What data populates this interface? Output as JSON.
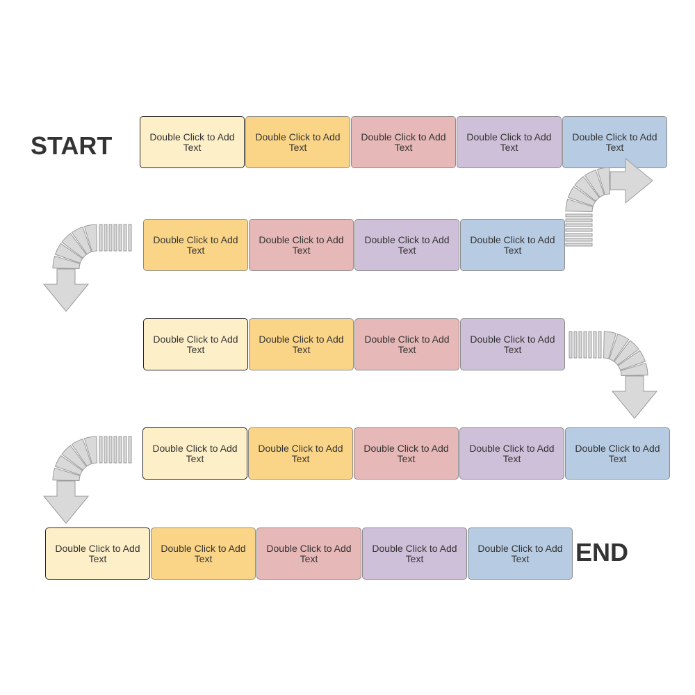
{
  "labels": {
    "start": "START",
    "end": "END"
  },
  "colors": {
    "cream": "#fdefc8",
    "orange": "#fbd587",
    "red": "#e6b8b7",
    "purple": "#cfc0d9",
    "blue": "#b7cce3",
    "arrow": "#d9d9d9"
  },
  "rows": [
    {
      "cells": [
        {
          "text": "Double Click to Add Text",
          "color": "cream"
        },
        {
          "text": "Double Click to Add Text",
          "color": "orange"
        },
        {
          "text": "Double Click to Add Text",
          "color": "red"
        },
        {
          "text": "Double Click to Add Text",
          "color": "purple"
        },
        {
          "text": "Double Click to Add Text",
          "color": "blue"
        }
      ]
    },
    {
      "cells": [
        {
          "text": "Double Click to Add Text",
          "color": "orange"
        },
        {
          "text": "Double Click to Add Text",
          "color": "red"
        },
        {
          "text": "Double Click to Add Text",
          "color": "purple"
        },
        {
          "text": "Double Click to Add Text",
          "color": "blue"
        }
      ]
    },
    {
      "cells": [
        {
          "text": "Double Click to Add Text",
          "color": "cream"
        },
        {
          "text": "Double Click to Add Text",
          "color": "orange"
        },
        {
          "text": "Double Click to Add Text",
          "color": "red"
        },
        {
          "text": "Double Click to Add Text",
          "color": "purple"
        }
      ]
    },
    {
      "cells": [
        {
          "text": "Double Click to Add Text",
          "color": "cream"
        },
        {
          "text": "Double Click to Add Text",
          "color": "orange"
        },
        {
          "text": "Double Click to Add Text",
          "color": "red"
        },
        {
          "text": "Double Click to Add Text",
          "color": "purple"
        },
        {
          "text": "Double Click to Add Text",
          "color": "blue"
        }
      ]
    },
    {
      "cells": [
        {
          "text": "Double Click to Add Text",
          "color": "cream"
        },
        {
          "text": "Double Click to Add Text",
          "color": "orange"
        },
        {
          "text": "Double Click to Add Text",
          "color": "red"
        },
        {
          "text": "Double Click to Add Text",
          "color": "purple"
        },
        {
          "text": "Double Click to Add Text",
          "color": "blue"
        }
      ]
    }
  ],
  "arrows": [
    {
      "direction": "down-then-left"
    },
    {
      "direction": "left-then-down"
    },
    {
      "direction": "right-then-down"
    },
    {
      "direction": "left-then-down"
    }
  ]
}
